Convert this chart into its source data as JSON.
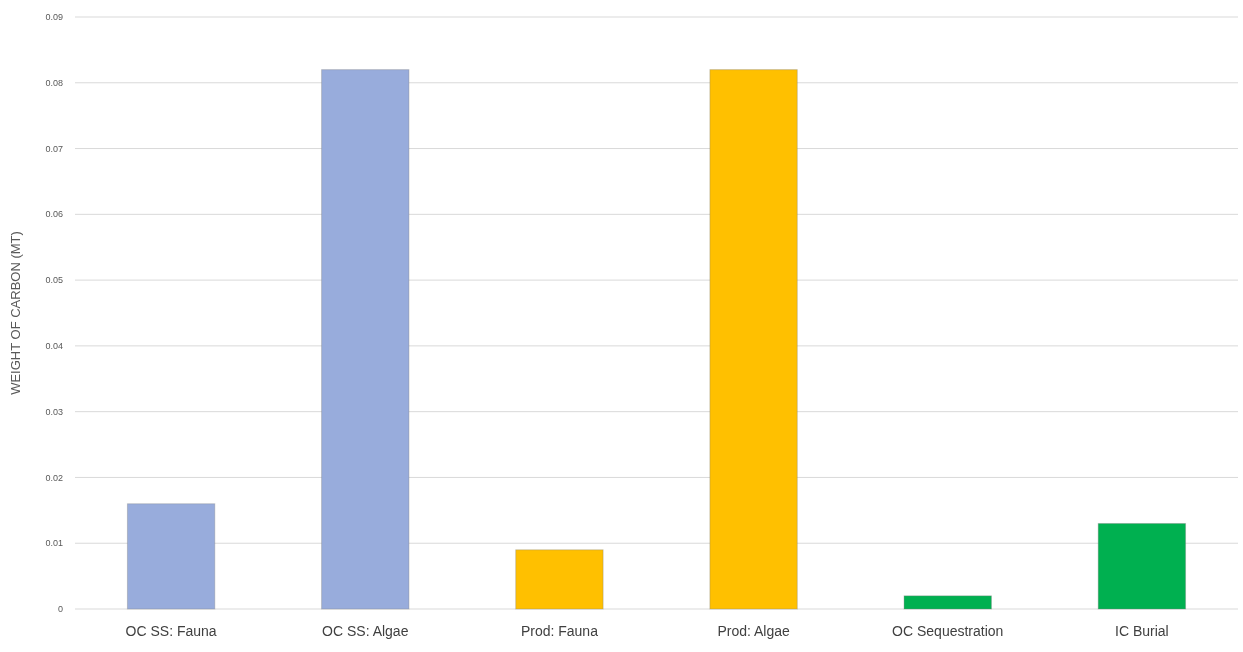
{
  "chart_data": {
    "type": "bar",
    "ylabel": "WEIGHT OF CARBON (MT)",
    "categories": [
      "OC SS: Fauna",
      "OC SS: Algae",
      "Prod: Fauna",
      "Prod: Algae",
      "OC Sequestration",
      "IC Burial"
    ],
    "values": [
      0.016,
      0.082,
      0.009,
      0.082,
      0.002,
      0.013
    ],
    "colors": [
      "#98acdc",
      "#98acdc",
      "#ffc000",
      "#ffc000",
      "#00b050",
      "#00b050"
    ],
    "ylim": [
      0,
      0.09
    ],
    "yticks": [
      0,
      0.01,
      0.02,
      0.03,
      0.04,
      0.05,
      0.06,
      0.07,
      0.08,
      0.09
    ],
    "grid": true
  }
}
